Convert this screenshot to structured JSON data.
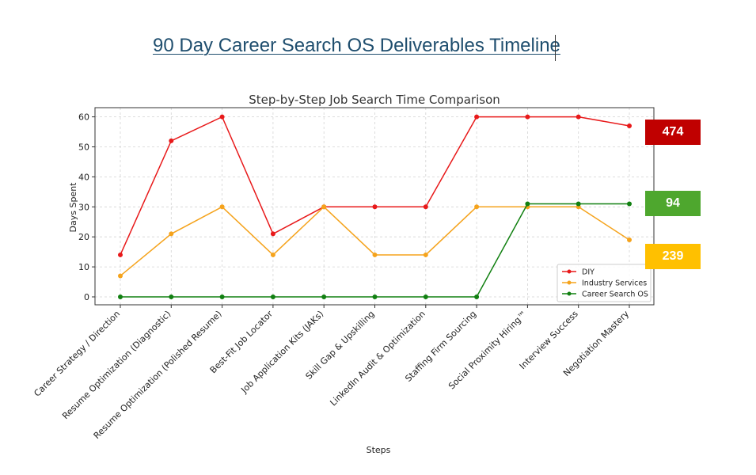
{
  "page": {
    "title": "90 Day Career Search OS Deliverables Timeline"
  },
  "chart_data": {
    "type": "line",
    "title": "Step-by-Step Job Search Time Comparison",
    "xlabel": "Steps",
    "ylabel": "Days Spent",
    "ylim": [
      -3,
      63
    ],
    "yticks": [
      0,
      10,
      20,
      30,
      40,
      50,
      60
    ],
    "grid": true,
    "legend_position": "bottom-right",
    "categories": [
      "Career Strategy / Direction",
      "Resume Optimization (Diagnostic)",
      "Resume Optimization (Polished Resume)",
      "Best-Fit Job Locator",
      "Job Application Kits (JAKs)",
      "Skill Gap & Upskilling",
      "LinkedIn Audit & Optimization",
      "Staffing Firm Sourcing",
      "Social Proximity Hiring™",
      "Interview Success",
      "Negotiation Mastery"
    ],
    "series": [
      {
        "name": "DIY",
        "color": "#e8191a",
        "values": [
          14,
          52,
          60,
          21,
          30,
          30,
          30,
          60,
          60,
          60,
          57
        ]
      },
      {
        "name": "Industry Services",
        "color": "#f5a31c",
        "values": [
          7,
          21,
          30,
          14,
          30,
          14,
          14,
          30,
          30,
          30,
          19
        ]
      },
      {
        "name": "Career Search OS",
        "color": "#118011",
        "values": [
          0,
          0,
          0,
          0,
          0,
          0,
          0,
          0,
          31,
          31,
          31
        ]
      }
    ]
  },
  "totals": [
    {
      "label": "474",
      "color": "#c00000"
    },
    {
      "label": "94",
      "color": "#4ea72e"
    },
    {
      "label": "239",
      "color": "#ffc000"
    }
  ]
}
